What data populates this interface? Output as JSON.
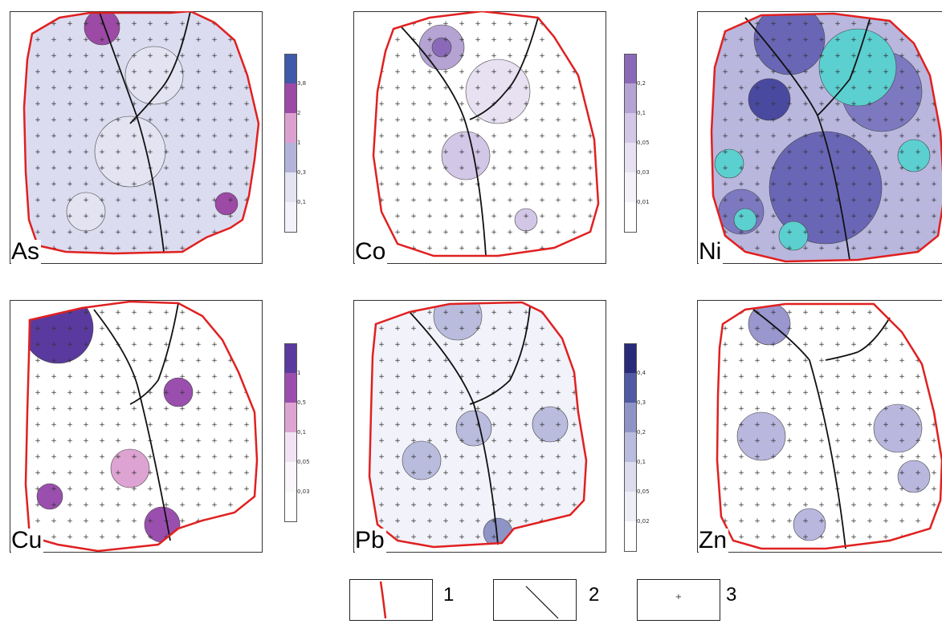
{
  "panels": [
    {
      "element": "As",
      "fill": "#dcdcf0",
      "scale_ticks": [
        "3,8",
        "2",
        "1",
        "0,3",
        "0,1"
      ],
      "scale_colors": [
        "#3f5aa8",
        "#9c4aa6",
        "#dca0d0",
        "#b3b3da",
        "#e3e3f2",
        "#f2f2fa"
      ]
    },
    {
      "element": "Co",
      "fill": "#ffffff",
      "scale_ticks": [
        "0,2",
        "0,1",
        "0,05",
        "0,03",
        "0,01"
      ],
      "scale_colors": [
        "#8a6ab8",
        "#b5a3d3",
        "#d2c7e6",
        "#e7e1f2",
        "#f4f1f9",
        "#ffffff"
      ]
    },
    {
      "element": "Ni",
      "fill": "#b9b7de",
      "scale_ticks": [],
      "scale_colors": []
    },
    {
      "element": "Cu",
      "fill": "#ffffff",
      "scale_ticks": [
        "1",
        "0,5",
        "0,1",
        "0,05",
        "0,03"
      ],
      "scale_colors": [
        "#5a3a9e",
        "#9a4fae",
        "#dda3d2",
        "#f1e3f3",
        "#fbf6fb",
        "#ffffff"
      ]
    },
    {
      "element": "Pb",
      "fill": "#f2f2fa",
      "scale_ticks": [
        "0,4",
        "0,3",
        "0,2",
        "0,1",
        "0,05",
        "0,02"
      ],
      "scale_colors": [
        "#282a7a",
        "#4f5aa2",
        "#8f94c6",
        "#b9bcdd",
        "#dcdcee",
        "#eeeef7",
        "#ffffff"
      ]
    },
    {
      "element": "Zn",
      "fill": "#ffffff",
      "scale_ticks": [],
      "scale_colors": []
    }
  ],
  "legend": {
    "items": [
      {
        "number": "1",
        "symbol": "red-boundary-line"
      },
      {
        "number": "2",
        "symbol": "fault-line"
      },
      {
        "number": "3",
        "symbol": "sample-point"
      }
    ]
  },
  "colors": {
    "boundary": "#e02020",
    "fault": "#111111",
    "sample": "#333333"
  }
}
